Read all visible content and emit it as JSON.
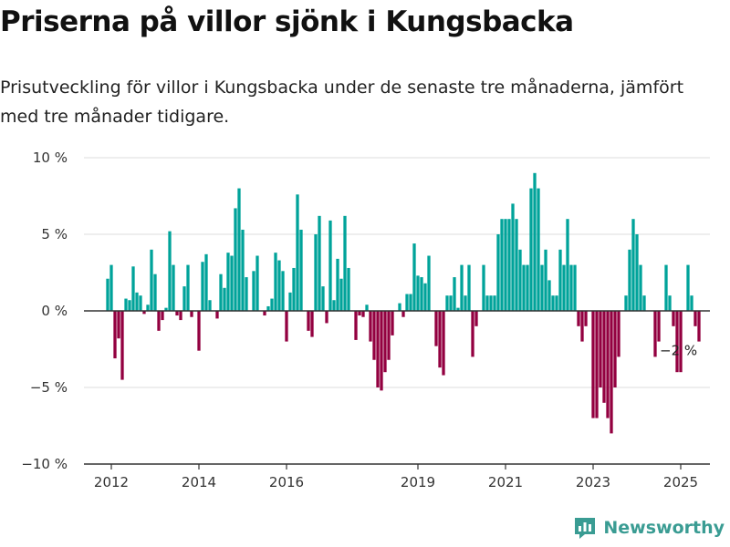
{
  "title": "Priserna på villor sjönk i Kungsbacka",
  "subtitle": "Prisutveckling för villor i Kungsbacka under de senaste tre månaderna, jämfört med tre månader tidigare.",
  "brand": {
    "name": "Newsworthy",
    "icon": "bar-chart-logo-icon"
  },
  "colors": {
    "positive": "#00a39a",
    "negative": "#930040",
    "grid": "#dddddd",
    "axis": "#333333"
  },
  "chart_data": {
    "type": "bar",
    "start_date": "2011-12",
    "x_ticks": [
      {
        "date": "2012-01",
        "label": "2012"
      },
      {
        "date": "2014-01",
        "label": "2014"
      },
      {
        "date": "2016-01",
        "label": "2016"
      },
      {
        "date": "2019-01",
        "label": "2019"
      },
      {
        "date": "2021-01",
        "label": "2021"
      },
      {
        "date": "2023-01",
        "label": "2023"
      },
      {
        "date": "2025-01",
        "label": "2025"
      }
    ],
    "y_ticks": [
      {
        "value": 10,
        "label": "10 %"
      },
      {
        "value": 5,
        "label": "5 %"
      },
      {
        "value": 0,
        "label": "0 %"
      },
      {
        "value": -5,
        "label": "−5 %"
      },
      {
        "value": -10,
        "label": "−10 %"
      }
    ],
    "ylim": [
      -10,
      10
    ],
    "annotation": {
      "label": "−2 %",
      "value": -2
    },
    "values": [
      2.1,
      3.0,
      -3.1,
      -1.8,
      -4.5,
      0.8,
      0.7,
      2.9,
      1.2,
      1.0,
      -0.2,
      0.4,
      4.0,
      2.4,
      -1.3,
      -0.6,
      0.2,
      5.2,
      3.0,
      -0.3,
      -0.6,
      1.6,
      3.0,
      -0.4,
      0.0,
      -2.6,
      3.2,
      3.7,
      0.7,
      0.0,
      -0.5,
      2.4,
      1.5,
      3.8,
      3.6,
      6.7,
      8.0,
      5.3,
      2.2,
      0.0,
      2.6,
      3.6,
      0.0,
      -0.3,
      0.3,
      0.8,
      3.8,
      3.3,
      2.6,
      -2.0,
      1.2,
      2.8,
      7.6,
      5.3,
      0.0,
      -1.3,
      -1.7,
      5.0,
      6.2,
      1.6,
      -0.8,
      5.9,
      0.7,
      3.4,
      2.1,
      6.2,
      2.8,
      0.0,
      -1.9,
      -0.3,
      -0.4,
      0.4,
      -2.0,
      -3.2,
      -5.0,
      -5.2,
      -4.0,
      -3.2,
      -1.6,
      0.0,
      0.5,
      -0.4,
      1.1,
      1.1,
      4.4,
      2.3,
      2.2,
      1.8,
      3.6,
      0.0,
      -2.3,
      -3.7,
      -4.2,
      1.0,
      1.0,
      2.2,
      0.2,
      3.0,
      1.0,
      3.0,
      -3.0,
      -1.0,
      0.0,
      3.0,
      1.0,
      1.0,
      1.0,
      5.0,
      6.0,
      6.0,
      6.0,
      7.0,
      6.0,
      4.0,
      3.0,
      3.0,
      8.0,
      9.0,
      8.0,
      3.0,
      4.0,
      2.0,
      1.0,
      1.0,
      4.0,
      3.0,
      6.0,
      3.0,
      3.0,
      -1.0,
      -2.0,
      -1.0,
      0.0,
      -7.0,
      -7.0,
      -5.0,
      -6.0,
      -7.0,
      -8.0,
      -5.0,
      -3.0,
      0.0,
      1.0,
      4.0,
      6.0,
      5.0,
      3.0,
      1.0,
      0.0,
      0.0,
      -3.0,
      -2.0,
      0.0,
      3.0,
      1.0,
      -1.0,
      -4.0,
      -4.0,
      0.0,
      3.0,
      1.0,
      -1.0,
      -2.0
    ]
  }
}
